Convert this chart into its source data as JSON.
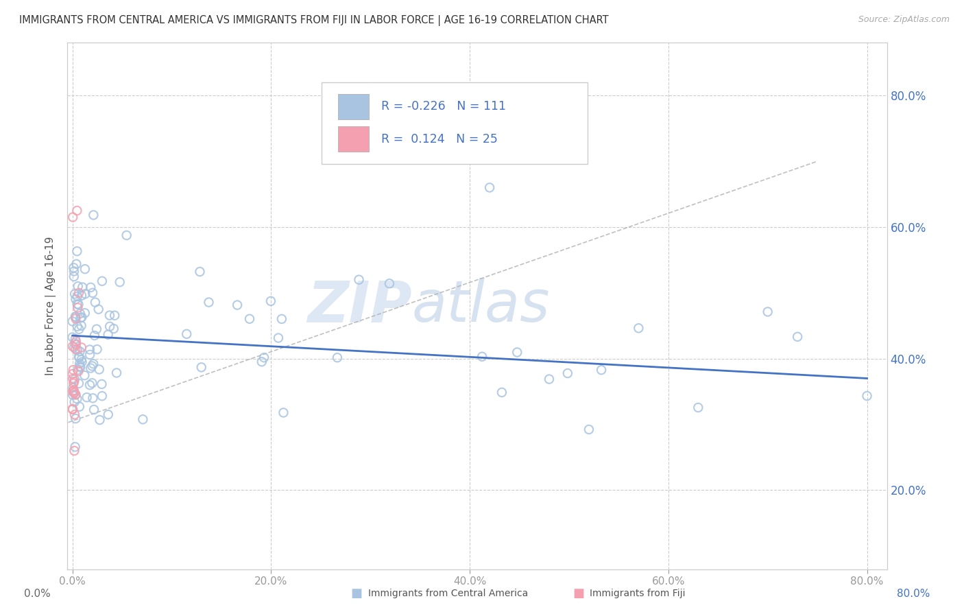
{
  "title": "IMMIGRANTS FROM CENTRAL AMERICA VS IMMIGRANTS FROM FIJI IN LABOR FORCE | AGE 16-19 CORRELATION CHART",
  "source": "Source: ZipAtlas.com",
  "ylabel": "In Labor Force | Age 16-19",
  "xlim": [
    -0.005,
    0.82
  ],
  "ylim": [
    0.08,
    0.88
  ],
  "xticks": [
    0.0,
    0.2,
    0.4,
    0.6,
    0.8
  ],
  "xticklabels": [
    "0.0%",
    "20.0%",
    "40.0%",
    "60.0%",
    "80.0%"
  ],
  "yticks": [
    0.2,
    0.4,
    0.6,
    0.8
  ],
  "yticklabels": [
    "20.0%",
    "40.0%",
    "60.0%",
    "80.0%"
  ],
  "color_blue": "#a8c4e0",
  "color_pink": "#f4a0b0",
  "trendline_blue": "#4472c4",
  "trendline_pink_dashed": "#cccccc",
  "background": "#ffffff",
  "legend_text_color": "#4472c4",
  "tick_color": "#4472c4",
  "grid_color": "#cccccc",
  "watermark_color1": "#c8d8ee",
  "watermark_color2": "#a8c0e0"
}
